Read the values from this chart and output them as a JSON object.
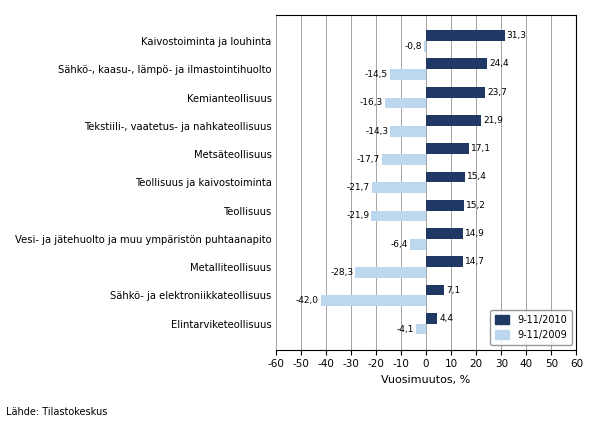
{
  "categories": [
    "Elintarviketeollisuus",
    "Sähkö- ja elektroniikkateollisuus",
    "Metalliteollisuus",
    "Vesi- ja jätehuolto ja muu ympäristön puhtaanapito",
    "Teollisuus",
    "Teollisuus ja kaivostoiminta",
    "Metsäteollisuus",
    "Tekstiili-, vaatetus- ja nahkateollisuus",
    "Kemianteollisuus",
    "Sähkö-, kaasu-, lämpö- ja ilmastointihuolto",
    "Kaivostoiminta ja louhinta"
  ],
  "values_2010": [
    4.4,
    7.1,
    14.7,
    14.9,
    15.2,
    15.4,
    17.1,
    21.9,
    23.7,
    24.4,
    31.3
  ],
  "values_2009": [
    -4.1,
    -42.0,
    -28.3,
    -6.4,
    -21.9,
    -21.7,
    -17.7,
    -14.3,
    -16.3,
    -14.5,
    -0.8
  ],
  "labels_2010": [
    "4,4",
    "7,1",
    "14,7",
    "14,9",
    "15,2",
    "15,4",
    "17,1",
    "21,9",
    "23,7",
    "24,4",
    "31,3"
  ],
  "labels_2009": [
    "-4,1",
    "-42,0",
    "-28,3",
    "-6,4",
    "-21,9",
    "-21,7",
    "-17,7",
    "-14,3",
    "-16,3",
    "-14,5",
    "-0,8"
  ],
  "color_2010": "#1F3864",
  "color_2009": "#BDD7EE",
  "xlabel": "Vuosimuutos, %",
  "legend_2010": "9-11/2010",
  "legend_2009": "9-11/2009",
  "source": "Lähde: Tilastokeskus",
  "xlim": [
    -60,
    60
  ],
  "xticks": [
    -60,
    -50,
    -40,
    -30,
    -20,
    -10,
    0,
    10,
    20,
    30,
    40,
    50,
    60
  ]
}
